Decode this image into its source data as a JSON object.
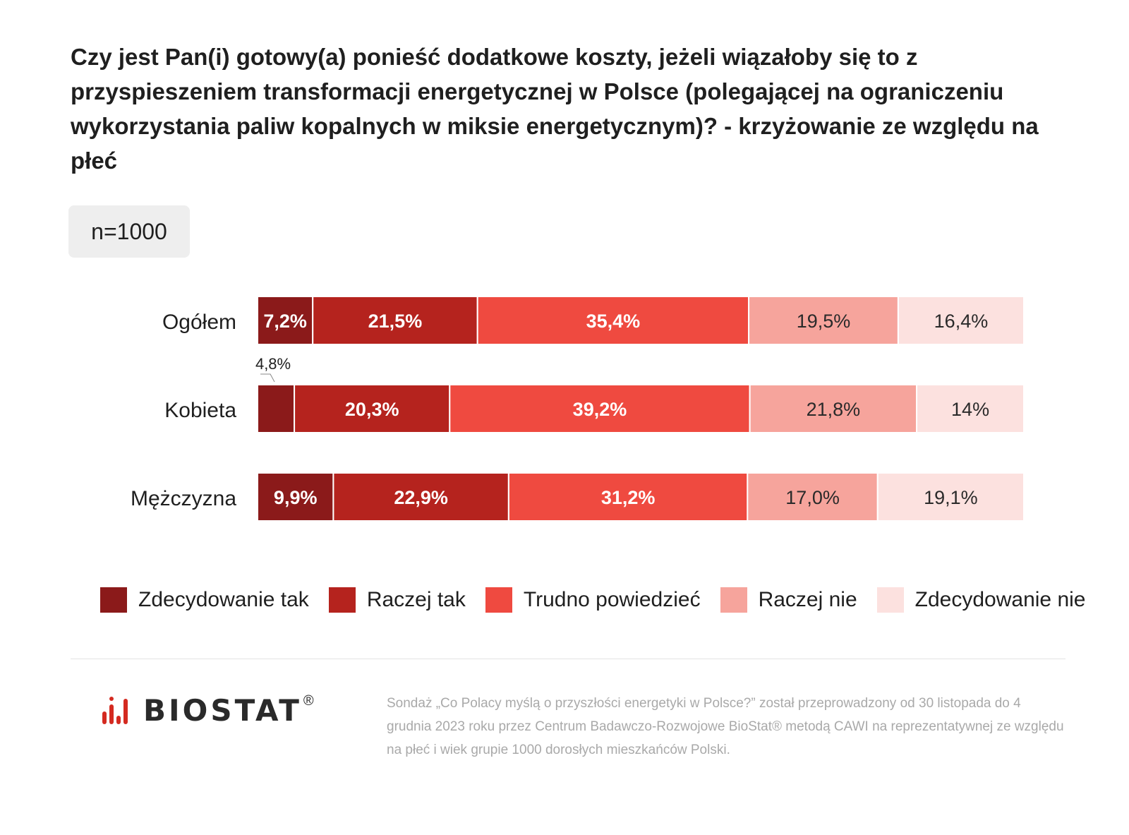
{
  "title": "Czy jest Pan(i) gotowy(a) ponieść dodatkowe koszty, jeżeli wiązałoby się to z przyspieszeniem transformacji energetycznej w Polsce (polegającej na ograniczeniu wykorzystania paliw kopalnych w miksie energetycznym)? - krzyżowanie ze względu na płeć",
  "sample_badge": "n=1000",
  "colors": [
    "#8b1a1a",
    "#b5231e",
    "#ef4a40",
    "#f6a49c",
    "#fce1df"
  ],
  "label_colors": [
    "#ffffff",
    "#ffffff",
    "#ffffff",
    "#2a2a2a",
    "#2a2a2a"
  ],
  "chart_data": {
    "type": "bar",
    "orientation": "horizontal",
    "stacked": true,
    "categories": [
      "Ogółem",
      "Kobieta",
      "Mężczyzna"
    ],
    "series": [
      {
        "name": "Zdecydowanie tak",
        "values": [
          7.2,
          4.8,
          9.9
        ],
        "labels": [
          "7,2%",
          "4,8%",
          "9,9%"
        ]
      },
      {
        "name": "Raczej tak",
        "values": [
          21.5,
          20.3,
          22.9
        ],
        "labels": [
          "21,5%",
          "20,3%",
          "22,9%"
        ]
      },
      {
        "name": "Trudno powiedzieć",
        "values": [
          35.4,
          39.2,
          31.2
        ],
        "labels": [
          "35,4%",
          "39,2%",
          "31,2%"
        ]
      },
      {
        "name": "Raczej nie",
        "values": [
          19.5,
          21.8,
          17.0
        ],
        "labels": [
          "19,5%",
          "21,8%",
          "17,0%"
        ]
      },
      {
        "name": "Zdecydowanie nie",
        "values": [
          16.4,
          14.0,
          19.1
        ],
        "labels": [
          "16,4%",
          "14%",
          "19,1%"
        ]
      }
    ],
    "xlim": [
      0,
      100
    ],
    "legend_position": "bottom",
    "grid": false
  },
  "brand": {
    "name": "BIOSTAT",
    "mark": "®"
  },
  "footnote": "Sondaż „Co Polacy myślą o przyszłości energetyki w Polsce?” został przeprowadzony od 30 listopada do 4 grudnia 2023 roku przez Centrum Badawczo-Rozwojowe BioStat® metodą CAWI na reprezentatywnej ze względu na płeć i wiek grupie 1000 dorosłych mieszkańców Polski."
}
